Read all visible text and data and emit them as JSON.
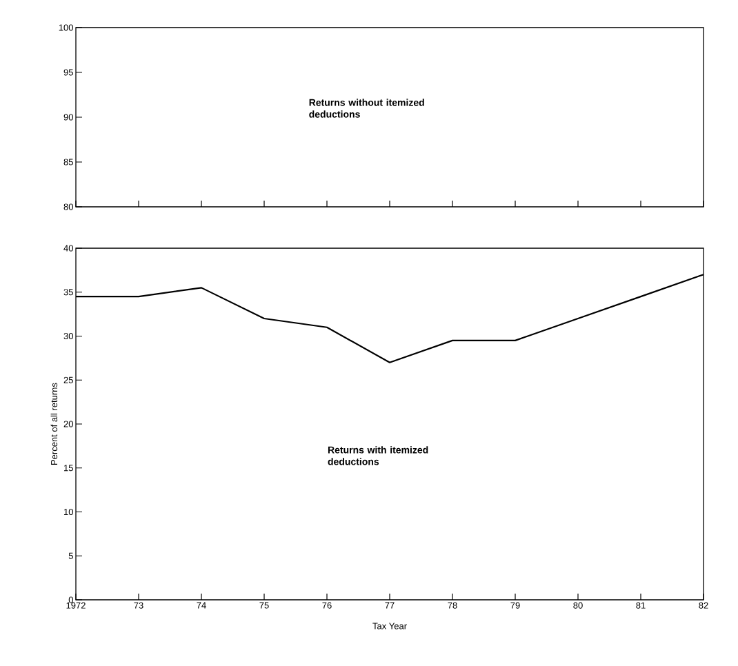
{
  "chart_data": [
    {
      "type": "line",
      "categories": [
        "1972",
        "73",
        "74",
        "75",
        "76",
        "77",
        "78",
        "79",
        "80",
        "81",
        "82"
      ],
      "ylim": [
        80,
        100
      ],
      "yticks": [
        80,
        85,
        90,
        95,
        100
      ],
      "tick_labels": "y",
      "annotations": [
        "Returns without itemized deductions"
      ]
    },
    {
      "type": "line",
      "categories": [
        "1972",
        "73",
        "74",
        "75",
        "76",
        "77",
        "78",
        "79",
        "80",
        "81",
        "82"
      ],
      "series": [
        {
          "color": "#000000",
          "values": [
            34.5,
            34.5,
            35.5,
            32,
            31,
            27,
            29.5,
            29.5,
            32,
            34.5,
            37
          ]
        }
      ],
      "ylim": [
        0,
        40
      ],
      "yticks": [
        0,
        5,
        10,
        15,
        20,
        25,
        30,
        35,
        40
      ],
      "xlabel": "Tax Year",
      "ylabel": "Percent of all returns",
      "annotations": [
        "Returns with itemized deductions"
      ]
    }
  ]
}
